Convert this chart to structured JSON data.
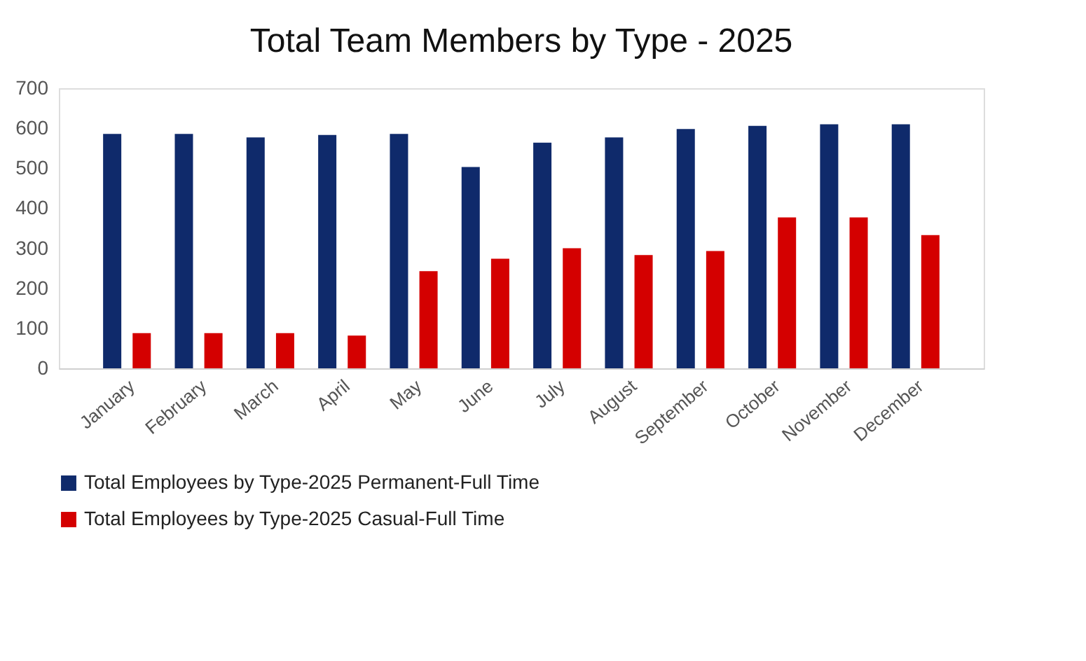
{
  "chart_data": {
    "type": "bar",
    "title": "Total Team Members  by Type - 2025",
    "categories": [
      "January",
      "February",
      "March",
      "April",
      "May",
      "June",
      "July",
      "August",
      "September",
      "October",
      "November",
      "December"
    ],
    "series": [
      {
        "name": "Total Employees by Type-2025 Permanent-Full Time",
        "color": "#0f2a6b",
        "values": [
          586,
          586,
          577,
          583,
          586,
          503,
          564,
          577,
          598,
          606,
          610,
          610
        ]
      },
      {
        "name": "Total Employees by Type-2025 Casual-Full Time",
        "color": "#d40000",
        "values": [
          88,
          88,
          88,
          82,
          243,
          274,
          300,
          283,
          293,
          377,
          377,
          333
        ]
      }
    ],
    "ylim": [
      0,
      700
    ],
    "yticks": [
      0,
      100,
      200,
      300,
      400,
      500,
      600,
      700
    ],
    "grid": false,
    "legend": "bottom"
  }
}
